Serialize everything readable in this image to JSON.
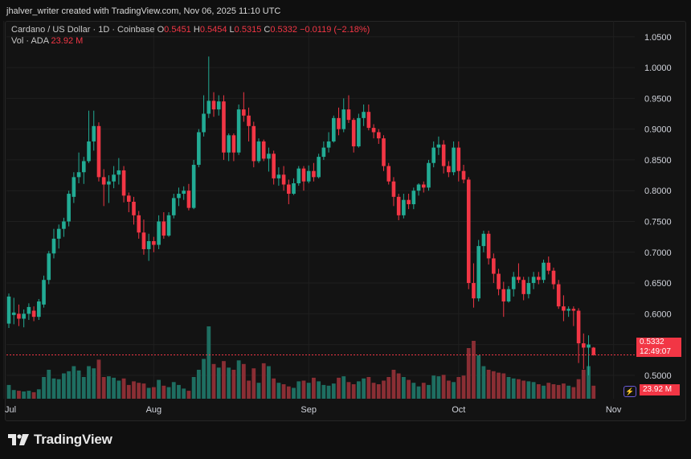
{
  "header": {
    "attribution": "jhalver_writer created with TradingView.com, Nov 06, 2025 11:10 UTC"
  },
  "legend": {
    "title": "Cardano / US Dollar · 1D · Coinbase",
    "o_label": "O",
    "o_value": "0.5451",
    "h_label": "H",
    "h_value": "0.5454",
    "l_label": "L",
    "l_value": "0.5315",
    "c_label": "C",
    "c_value": "0.5332",
    "change": "−0.0119 (−2.18%)",
    "vol_label": "Vol · ADA",
    "vol_value": "23.92 M"
  },
  "price_tag": {
    "price": "0.5332",
    "countdown": "12:49:07"
  },
  "vol_tag": {
    "value": "23.92 M"
  },
  "footer": {
    "brand": "TradingView"
  },
  "colors": {
    "up": "#22ab94",
    "down": "#f23645",
    "up_volume": "#1e6e61",
    "down_volume": "#8a2e34",
    "background": "#131313",
    "grid": "#1f1f1f"
  },
  "chart_data": {
    "type": "candlestick",
    "title": "Cardano / US Dollar · 1D · Coinbase",
    "y_ticks": [
      "0.5000",
      "0.5500",
      "0.6000",
      "0.6500",
      "0.7000",
      "0.7500",
      "0.8000",
      "0.8500",
      "0.9000",
      "0.9500",
      "1.0000",
      "1.0500"
    ],
    "ylim": [
      0.462,
      1.068
    ],
    "x_ticks": [
      {
        "label": "Jul",
        "index": -1
      },
      {
        "label": "Aug",
        "index": 29
      },
      {
        "label": "Sep",
        "index": 60
      },
      {
        "label": "Oct",
        "index": 90
      },
      {
        "label": "Nov",
        "index": 121
      }
    ],
    "last_close": 0.5332,
    "candles": [
      [
        0.584,
        0.633,
        0.577,
        0.628
      ],
      [
        0.598,
        0.626,
        0.583,
        0.602
      ],
      [
        0.6,
        0.615,
        0.58,
        0.592
      ],
      [
        0.592,
        0.607,
        0.578,
        0.6
      ],
      [
        0.6,
        0.617,
        0.59,
        0.611
      ],
      [
        0.605,
        0.612,
        0.588,
        0.595
      ],
      [
        0.595,
        0.624,
        0.59,
        0.62
      ],
      [
        0.615,
        0.662,
        0.61,
        0.655
      ],
      [
        0.655,
        0.702,
        0.648,
        0.698
      ],
      [
        0.698,
        0.738,
        0.69,
        0.722
      ],
      [
        0.722,
        0.745,
        0.706,
        0.738
      ],
      [
        0.738,
        0.756,
        0.725,
        0.75
      ],
      [
        0.75,
        0.8,
        0.742,
        0.795
      ],
      [
        0.79,
        0.83,
        0.78,
        0.822
      ],
      [
        0.822,
        0.862,
        0.812,
        0.83
      ],
      [
        0.83,
        0.855,
        0.811,
        0.848
      ],
      [
        0.848,
        0.93,
        0.845,
        0.88
      ],
      [
        0.88,
        0.93,
        0.865,
        0.905
      ],
      [
        0.905,
        0.911,
        0.815,
        0.822
      ],
      [
        0.822,
        0.835,
        0.775,
        0.81
      ],
      [
        0.81,
        0.825,
        0.78,
        0.815
      ],
      [
        0.815,
        0.84,
        0.804,
        0.826
      ],
      [
        0.826,
        0.853,
        0.81,
        0.833
      ],
      [
        0.833,
        0.84,
        0.781,
        0.792
      ],
      [
        0.792,
        0.797,
        0.765,
        0.782
      ],
      [
        0.782,
        0.79,
        0.745,
        0.76
      ],
      [
        0.76,
        0.767,
        0.722,
        0.732
      ],
      [
        0.732,
        0.753,
        0.696,
        0.705
      ],
      [
        0.705,
        0.73,
        0.686,
        0.718
      ],
      [
        0.718,
        0.725,
        0.7,
        0.712
      ],
      [
        0.712,
        0.76,
        0.705,
        0.75
      ],
      [
        0.75,
        0.765,
        0.722,
        0.727
      ],
      [
        0.727,
        0.765,
        0.725,
        0.76
      ],
      [
        0.76,
        0.795,
        0.755,
        0.788
      ],
      [
        0.788,
        0.805,
        0.775,
        0.795
      ],
      [
        0.795,
        0.807,
        0.785,
        0.8
      ],
      [
        0.8,
        0.811,
        0.768,
        0.772
      ],
      [
        0.772,
        0.85,
        0.77,
        0.842
      ],
      [
        0.842,
        0.9,
        0.838,
        0.895
      ],
      [
        0.895,
        0.955,
        0.888,
        0.925
      ],
      [
        0.925,
        1.018,
        0.918,
        0.946
      ],
      [
        0.946,
        0.96,
        0.92,
        0.932
      ],
      [
        0.932,
        0.955,
        0.922,
        0.945
      ],
      [
        0.945,
        0.955,
        0.85,
        0.862
      ],
      [
        0.862,
        0.893,
        0.848,
        0.89
      ],
      [
        0.89,
        0.893,
        0.848,
        0.862
      ],
      [
        0.862,
        0.94,
        0.858,
        0.932
      ],
      [
        0.932,
        0.96,
        0.912,
        0.922
      ],
      [
        0.922,
        0.935,
        0.88,
        0.905
      ],
      [
        0.905,
        0.912,
        0.838,
        0.848
      ],
      [
        0.848,
        0.885,
        0.845,
        0.88
      ],
      [
        0.88,
        0.883,
        0.848,
        0.852
      ],
      [
        0.852,
        0.87,
        0.831,
        0.86
      ],
      [
        0.86,
        0.865,
        0.81,
        0.82
      ],
      [
        0.82,
        0.838,
        0.808,
        0.826
      ],
      [
        0.826,
        0.84,
        0.8,
        0.81
      ],
      [
        0.81,
        0.818,
        0.778,
        0.795
      ],
      [
        0.795,
        0.82,
        0.793,
        0.812
      ],
      [
        0.812,
        0.84,
        0.808,
        0.836
      ],
      [
        0.836,
        0.84,
        0.8,
        0.815
      ],
      [
        0.815,
        0.841,
        0.812,
        0.832
      ],
      [
        0.832,
        0.845,
        0.815,
        0.822
      ],
      [
        0.822,
        0.86,
        0.82,
        0.855
      ],
      [
        0.855,
        0.88,
        0.85,
        0.87
      ],
      [
        0.87,
        0.895,
        0.862,
        0.88
      ],
      [
        0.88,
        0.922,
        0.878,
        0.918
      ],
      [
        0.918,
        0.935,
        0.89,
        0.9
      ],
      [
        0.9,
        0.95,
        0.895,
        0.932
      ],
      [
        0.932,
        0.955,
        0.91,
        0.915
      ],
      [
        0.915,
        0.918,
        0.862,
        0.872
      ],
      [
        0.872,
        0.925,
        0.87,
        0.918
      ],
      [
        0.918,
        0.94,
        0.905,
        0.928
      ],
      [
        0.928,
        0.94,
        0.898,
        0.902
      ],
      [
        0.902,
        0.908,
        0.885,
        0.895
      ],
      [
        0.895,
        0.9,
        0.876,
        0.885
      ],
      [
        0.885,
        0.89,
        0.832,
        0.84
      ],
      [
        0.84,
        0.845,
        0.81,
        0.815
      ],
      [
        0.815,
        0.822,
        0.775,
        0.79
      ],
      [
        0.79,
        0.795,
        0.752,
        0.76
      ],
      [
        0.76,
        0.795,
        0.755,
        0.785
      ],
      [
        0.785,
        0.795,
        0.77,
        0.778
      ],
      [
        0.778,
        0.805,
        0.77,
        0.8
      ],
      [
        0.8,
        0.812,
        0.792,
        0.81
      ],
      [
        0.81,
        0.815,
        0.797,
        0.805
      ],
      [
        0.805,
        0.85,
        0.8,
        0.845
      ],
      [
        0.845,
        0.88,
        0.838,
        0.87
      ],
      [
        0.87,
        0.888,
        0.858,
        0.875
      ],
      [
        0.875,
        0.882,
        0.828,
        0.84
      ],
      [
        0.84,
        0.848,
        0.822,
        0.83
      ],
      [
        0.83,
        0.88,
        0.825,
        0.87
      ],
      [
        0.87,
        0.88,
        0.815,
        0.832
      ],
      [
        0.832,
        0.842,
        0.812,
        0.818
      ],
      [
        0.818,
        0.822,
        0.64,
        0.65
      ],
      [
        0.65,
        0.682,
        0.61,
        0.625
      ],
      [
        0.625,
        0.72,
        0.62,
        0.71
      ],
      [
        0.71,
        0.735,
        0.7,
        0.73
      ],
      [
        0.73,
        0.735,
        0.68,
        0.69
      ],
      [
        0.69,
        0.698,
        0.65,
        0.665
      ],
      [
        0.665,
        0.673,
        0.63,
        0.64
      ],
      [
        0.64,
        0.652,
        0.595,
        0.62
      ],
      [
        0.62,
        0.645,
        0.618,
        0.64
      ],
      [
        0.64,
        0.668,
        0.628,
        0.66
      ],
      [
        0.66,
        0.682,
        0.65,
        0.655
      ],
      [
        0.655,
        0.66,
        0.622,
        0.632
      ],
      [
        0.632,
        0.66,
        0.625,
        0.65
      ],
      [
        0.65,
        0.668,
        0.64,
        0.66
      ],
      [
        0.66,
        0.668,
        0.648,
        0.655
      ],
      [
        0.655,
        0.688,
        0.65,
        0.683
      ],
      [
        0.683,
        0.693,
        0.664,
        0.67
      ],
      [
        0.67,
        0.675,
        0.64,
        0.648
      ],
      [
        0.648,
        0.655,
        0.608,
        0.612
      ],
      [
        0.612,
        0.63,
        0.588,
        0.605
      ],
      [
        0.605,
        0.612,
        0.595,
        0.608
      ],
      [
        0.608,
        0.612,
        0.58,
        0.605
      ],
      [
        0.605,
        0.609,
        0.52,
        0.552
      ],
      [
        0.552,
        0.568,
        0.51,
        0.545
      ],
      [
        0.545,
        0.565,
        0.5,
        0.55
      ],
      [
        0.545,
        0.546,
        0.532,
        0.533
      ]
    ],
    "volumes": [
      0.19,
      0.12,
      0.11,
      0.1,
      0.11,
      0.09,
      0.13,
      0.3,
      0.4,
      0.28,
      0.27,
      0.35,
      0.38,
      0.45,
      0.39,
      0.3,
      0.45,
      0.42,
      0.54,
      0.3,
      0.31,
      0.29,
      0.25,
      0.28,
      0.19,
      0.24,
      0.22,
      0.21,
      0.15,
      0.16,
      0.26,
      0.18,
      0.16,
      0.23,
      0.19,
      0.14,
      0.11,
      0.3,
      0.4,
      0.55,
      1.0,
      0.48,
      0.43,
      0.52,
      0.43,
      0.4,
      0.53,
      0.48,
      0.25,
      0.42,
      0.22,
      0.49,
      0.45,
      0.28,
      0.22,
      0.2,
      0.17,
      0.15,
      0.24,
      0.25,
      0.22,
      0.29,
      0.24,
      0.19,
      0.18,
      0.21,
      0.29,
      0.31,
      0.23,
      0.2,
      0.24,
      0.28,
      0.3,
      0.22,
      0.2,
      0.25,
      0.3,
      0.4,
      0.35,
      0.3,
      0.26,
      0.22,
      0.17,
      0.22,
      0.19,
      0.32,
      0.31,
      0.33,
      0.25,
      0.23,
      0.3,
      0.32,
      0.7,
      0.8,
      0.6,
      0.45,
      0.4,
      0.38,
      0.36,
      0.35,
      0.3,
      0.28,
      0.27,
      0.25,
      0.24,
      0.23,
      0.2,
      0.18,
      0.22,
      0.2,
      0.19,
      0.21,
      0.18,
      0.16,
      0.27,
      0.4,
      0.45,
      0.18
    ]
  }
}
